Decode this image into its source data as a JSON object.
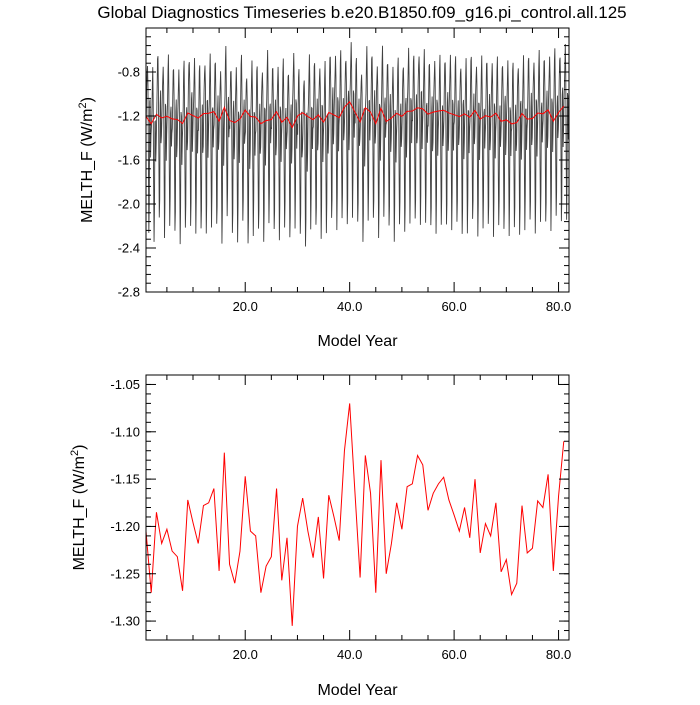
{
  "title": "Global Diagnostics Timeseries b.e20.B1850.f09_g16.pi_control.all.125",
  "colors": {
    "monthly_series": "#000000",
    "annual_series": "#ff0000",
    "axes": "#000000",
    "background": "#ffffff"
  },
  "chart_data": [
    {
      "type": "line",
      "xlabel": "Model Year",
      "ylabel_main": "MELTH_F (W/m",
      "ylabel_sup": "2",
      "ylabel_close": ")",
      "xlim": [
        1,
        82
      ],
      "ylim": [
        -2.8,
        -0.4
      ],
      "xticks": [
        20.0,
        40.0,
        60.0,
        80.0
      ],
      "xtick_labels": [
        "20.0",
        "40.0",
        "60.0",
        "80.0"
      ],
      "yticks": [
        -2.8,
        -2.4,
        -2.0,
        -1.6,
        -1.2,
        -0.8
      ],
      "ytick_labels": [
        "-2.8",
        "-2.4",
        "-2.0",
        "-1.6",
        "-1.2",
        "-0.8"
      ],
      "grid": false,
      "series": [
        {
          "style": "monthly seasonal cycle",
          "color": "#000000",
          "years": 81,
          "points_per_year": 12,
          "monthly_climatology": [
            -1.15,
            -0.95,
            -0.72,
            -0.62,
            -0.88,
            -1.55,
            -2.15,
            -1.9,
            -1.05,
            -1.0,
            -1.45,
            -1.3
          ],
          "yearly_offsets": [
            -0.07,
            -0.19,
            -0.02,
            -0.1,
            -0.08,
            -0.11,
            -0.16,
            -0.12,
            -0.03,
            -0.09,
            -0.13,
            -0.07,
            -0.07,
            -0.07,
            -0.15,
            -0.0,
            -0.12,
            -0.15,
            -0.06,
            -0.18,
            -0.12,
            -0.13,
            -0.14,
            -0.04,
            -0.11,
            -0.12,
            -0.11,
            -0.15,
            -0.03,
            -0.18,
            -0.2,
            -0.07,
            -0.09,
            -0.11,
            -0.14,
            -0.0,
            -0.03,
            -0.03,
            -0.02,
            0.06,
            -0.07,
            -0.15,
            -0.0,
            -0.02,
            -0.1,
            0.0,
            -0.06,
            -0.14,
            -0.09,
            -0.08,
            -0.0,
            -0.04,
            0.01,
            -0.03,
            -0.08,
            -0.06,
            -0.08,
            -0.04,
            -0.04,
            -0.07,
            -0.09,
            -0.1,
            -0.04,
            -0.09,
            -0.09,
            -0.06,
            -0.09,
            -0.09,
            -0.07,
            -0.1,
            -0.12,
            -0.09,
            -0.08,
            -0.04,
            -0.06,
            -0.04,
            -0.03,
            -0.04,
            -0.01,
            0.01,
            0.04
          ]
        },
        {
          "style": "annual mean",
          "color": "#ff0000",
          "x": [
            1,
            2,
            3,
            4,
            5,
            6,
            7,
            8,
            9,
            10,
            11,
            12,
            13,
            14,
            15,
            16,
            17,
            18,
            19,
            20,
            21,
            22,
            23,
            24,
            25,
            26,
            27,
            28,
            29,
            30,
            31,
            32,
            33,
            34,
            35,
            36,
            37,
            38,
            39,
            40,
            41,
            42,
            43,
            44,
            45,
            46,
            47,
            48,
            49,
            50,
            51,
            52,
            53,
            54,
            55,
            56,
            57,
            58,
            59,
            60,
            61,
            62,
            63,
            64,
            65,
            66,
            67,
            68,
            69,
            70,
            71,
            72,
            73,
            74,
            75,
            76,
            77,
            78,
            79,
            80,
            81
          ],
          "y": [
            -1.205,
            -1.27,
            -1.185,
            -1.218,
            -1.203,
            -1.226,
            -1.232,
            -1.268,
            -1.172,
            -1.196,
            -1.218,
            -1.178,
            -1.175,
            -1.16,
            -1.247,
            -1.122,
            -1.24,
            -1.26,
            -1.226,
            -1.147,
            -1.205,
            -1.21,
            -1.27,
            -1.242,
            -1.232,
            -1.16,
            -1.257,
            -1.212,
            -1.305,
            -1.2,
            -1.17,
            -1.205,
            -1.233,
            -1.19,
            -1.255,
            -1.167,
            -1.19,
            -1.215,
            -1.12,
            -1.07,
            -1.163,
            -1.254,
            -1.125,
            -1.165,
            -1.27,
            -1.13,
            -1.25,
            -1.218,
            -1.175,
            -1.203,
            -1.158,
            -1.155,
            -1.125,
            -1.135,
            -1.183,
            -1.165,
            -1.155,
            -1.148,
            -1.172,
            -1.188,
            -1.205,
            -1.18,
            -1.212,
            -1.15,
            -1.228,
            -1.197,
            -1.21,
            -1.175,
            -1.248,
            -1.235,
            -1.272,
            -1.26,
            -1.178,
            -1.228,
            -1.223,
            -1.173,
            -1.18,
            -1.145,
            -1.247,
            -1.168,
            -1.11
          ]
        }
      ]
    },
    {
      "type": "line",
      "xlabel": "Model Year",
      "ylabel_main": "MELTH_F (W/m",
      "ylabel_sup": "2",
      "ylabel_close": ")",
      "xlim": [
        1,
        82
      ],
      "ylim": [
        -1.32,
        -1.04
      ],
      "xticks": [
        20.0,
        40.0,
        60.0,
        80.0
      ],
      "xtick_labels": [
        "20.0",
        "40.0",
        "60.0",
        "80.0"
      ],
      "yticks": [
        -1.3,
        -1.25,
        -1.2,
        -1.15,
        -1.1,
        -1.05
      ],
      "ytick_labels": [
        "-1.30",
        "-1.25",
        "-1.20",
        "-1.15",
        "-1.10",
        "-1.05"
      ],
      "grid": false,
      "series": [
        {
          "style": "annual mean",
          "color": "#ff0000",
          "x": [
            1,
            2,
            3,
            4,
            5,
            6,
            7,
            8,
            9,
            10,
            11,
            12,
            13,
            14,
            15,
            16,
            17,
            18,
            19,
            20,
            21,
            22,
            23,
            24,
            25,
            26,
            27,
            28,
            29,
            30,
            31,
            32,
            33,
            34,
            35,
            36,
            37,
            38,
            39,
            40,
            41,
            42,
            43,
            44,
            45,
            46,
            47,
            48,
            49,
            50,
            51,
            52,
            53,
            54,
            55,
            56,
            57,
            58,
            59,
            60,
            61,
            62,
            63,
            64,
            65,
            66,
            67,
            68,
            69,
            70,
            71,
            72,
            73,
            74,
            75,
            76,
            77,
            78,
            79,
            80,
            81
          ],
          "y": [
            -1.205,
            -1.27,
            -1.185,
            -1.218,
            -1.203,
            -1.226,
            -1.232,
            -1.268,
            -1.172,
            -1.196,
            -1.218,
            -1.178,
            -1.175,
            -1.16,
            -1.247,
            -1.122,
            -1.24,
            -1.26,
            -1.226,
            -1.147,
            -1.205,
            -1.21,
            -1.27,
            -1.242,
            -1.232,
            -1.16,
            -1.257,
            -1.212,
            -1.305,
            -1.2,
            -1.17,
            -1.205,
            -1.233,
            -1.19,
            -1.255,
            -1.167,
            -1.19,
            -1.215,
            -1.12,
            -1.07,
            -1.163,
            -1.254,
            -1.125,
            -1.165,
            -1.27,
            -1.13,
            -1.25,
            -1.218,
            -1.175,
            -1.203,
            -1.158,
            -1.155,
            -1.125,
            -1.135,
            -1.183,
            -1.165,
            -1.155,
            -1.148,
            -1.172,
            -1.188,
            -1.205,
            -1.18,
            -1.212,
            -1.15,
            -1.228,
            -1.197,
            -1.21,
            -1.175,
            -1.248,
            -1.235,
            -1.272,
            -1.26,
            -1.178,
            -1.228,
            -1.223,
            -1.173,
            -1.18,
            -1.145,
            -1.247,
            -1.168,
            -1.11
          ]
        }
      ]
    }
  ]
}
